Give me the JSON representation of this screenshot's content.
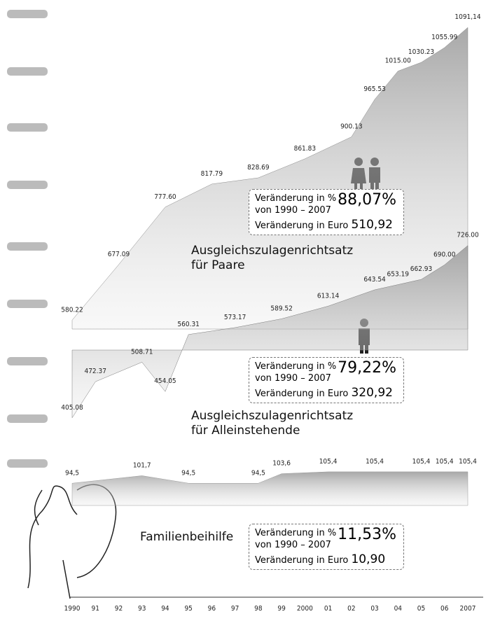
{
  "chart_data": {
    "type": "area",
    "categories": [
      "1990",
      "91",
      "92",
      "93",
      "94",
      "95",
      "96",
      "97",
      "98",
      "99",
      "2000",
      "01",
      "02",
      "03",
      "04",
      "05",
      "06",
      "2007"
    ],
    "series": [
      {
        "name": "Ausgleichszulagenrichtsatz für Paare",
        "color": "#8a8a8a",
        "ylim": [
          550,
          1100
        ],
        "values": [
          580.22,
          null,
          677.09,
          null,
          777.6,
          null,
          817.79,
          null,
          828.69,
          null,
          861.83,
          null,
          900.13,
          965.53,
          1015.0,
          1030.23,
          1055.99,
          1091.14
        ],
        "value_labels": [
          "580.22",
          null,
          "677.09",
          null,
          "777.60",
          null,
          "817.79",
          null,
          "828.69",
          null,
          "861.83",
          null,
          "900.13",
          "965.53",
          "1015.00",
          "1030.23",
          "1055.99",
          "1091,14"
        ],
        "box": {
          "pct_caption": "Veränderung in %",
          "period": "von 1990 – 2007",
          "pct": "88,07%",
          "euro_caption": "Veränderung in Euro",
          "euro": "510,92"
        }
      },
      {
        "name": "Ausgleichszulagenrichtsatz für Alleinstehende",
        "color": "#7a7a7a",
        "ylim": [
          380,
          740
        ],
        "values": [
          405.08,
          472.37,
          null,
          508.71,
          454.05,
          560.31,
          null,
          573.17,
          null,
          589.52,
          null,
          613.14,
          null,
          643.54,
          653.19,
          662.93,
          690.0,
          726.0
        ],
        "value_labels": [
          "405.08",
          "472.37",
          null,
          "508.71",
          "454.05",
          "560.31",
          null,
          "573.17",
          null,
          "589.52",
          null,
          "613.14",
          null,
          "643.54",
          "653.19",
          "662.93",
          "690.00",
          "726.00"
        ],
        "box": {
          "pct_caption": "Veränderung in %",
          "period": "von 1990 – 2007",
          "pct": "79,22%",
          "euro_caption": "Veränderung in Euro",
          "euro": "320,92"
        }
      },
      {
        "name": "Familienbeihilfe",
        "color": "#9a9a9a",
        "ylim": [
          80,
          110
        ],
        "values": [
          94.5,
          null,
          null,
          101.7,
          null,
          94.5,
          null,
          null,
          94.5,
          103.6,
          null,
          105.4,
          null,
          105.4,
          null,
          105.4,
          105.4,
          105.4
        ],
        "value_labels": [
          "94,5",
          null,
          null,
          "101,7",
          null,
          "94,5",
          null,
          null,
          "94,5",
          "103,6",
          null,
          "105,4",
          null,
          "105,4",
          null,
          "105,4",
          "105,4",
          "105,4"
        ],
        "box": {
          "pct_caption": "Veränderung in %",
          "period": "von 1990 – 2007",
          "pct": "11,53%",
          "euro_caption": "Veränderung in Euro",
          "euro": "10,90"
        }
      }
    ]
  }
}
